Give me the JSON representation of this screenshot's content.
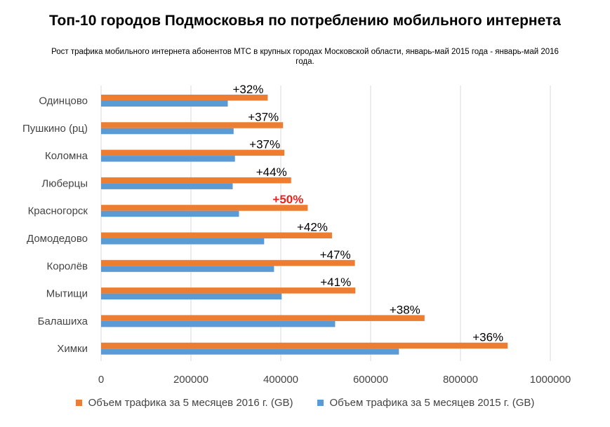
{
  "title": "Топ-10 городов Подмосковья по потреблению мобильного интернета",
  "subtitle": "Рост трафика мобильного интернета абонентов МТС в крупных городах Московской области, январь-май 2015 года - январь-май 2016 года.",
  "colors": {
    "series_2016": "#ed7d31",
    "series_2015": "#5b9bd5",
    "highlight_label": "#e8221c",
    "gridline": "#d9d9d9"
  },
  "chart_data": {
    "type": "bar",
    "orientation": "horizontal",
    "title": "Топ-10 городов Подмосковья по потреблению мобильного интернета",
    "categories": [
      "Одинцово",
      "Пушкино (рц)",
      "Коломна",
      "Люберцы",
      "Красногорск",
      "Домодедово",
      "Королёв",
      "Мытищи",
      "Балашиха",
      "Химки"
    ],
    "series": [
      {
        "name": "Объем трафика за 5 месяцев 2016 г. (GB)",
        "color": "#ed7d31",
        "values": [
          371000,
          405000,
          408000,
          423000,
          460000,
          514000,
          565000,
          566000,
          720000,
          905000
        ]
      },
      {
        "name": "Объем трафика за 5 месяцев 2015 г. (GB)",
        "color": "#5b9bd5",
        "values": [
          282000,
          295000,
          298000,
          293000,
          307000,
          363000,
          385000,
          402000,
          521000,
          663000
        ]
      }
    ],
    "data_labels": [
      "+32%",
      "+37%",
      "+37%",
      "+44%",
      "+50%",
      "+42%",
      "+47%",
      "+41%",
      "+38%",
      "+36%"
    ],
    "highlight_index": 4,
    "x_ticks": [
      0,
      200000,
      400000,
      600000,
      800000,
      1000000
    ],
    "x_tick_labels": [
      "0",
      "200000",
      "400000",
      "600000",
      "800000",
      "1000000"
    ],
    "xlim": [
      0,
      1000000
    ],
    "grid": "vertical",
    "legend": "bottom",
    "xlabel": "",
    "ylabel": ""
  }
}
